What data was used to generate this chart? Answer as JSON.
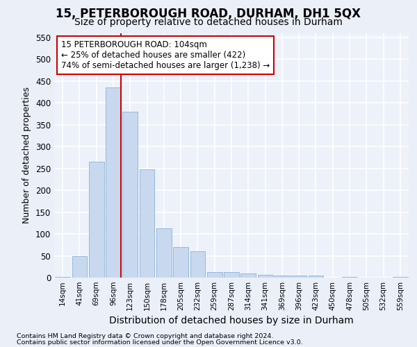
{
  "title": "15, PETERBOROUGH ROAD, DURHAM, DH1 5QX",
  "subtitle": "Size of property relative to detached houses in Durham",
  "xlabel": "Distribution of detached houses by size in Durham",
  "ylabel": "Number of detached properties",
  "bar_labels": [
    "14sqm",
    "41sqm",
    "69sqm",
    "96sqm",
    "123sqm",
    "150sqm",
    "178sqm",
    "205sqm",
    "232sqm",
    "259sqm",
    "287sqm",
    "314sqm",
    "341sqm",
    "369sqm",
    "396sqm",
    "423sqm",
    "450sqm",
    "478sqm",
    "505sqm",
    "532sqm",
    "559sqm"
  ],
  "bar_values": [
    2,
    50,
    265,
    435,
    380,
    248,
    113,
    70,
    60,
    12,
    13,
    9,
    6,
    5,
    5,
    4,
    0,
    1,
    0,
    0,
    2
  ],
  "bar_color": "#c8d8ee",
  "bar_edge_color": "#8ab4d8",
  "vline_x_index": 3,
  "vline_color": "#cc0000",
  "annotation_text": "15 PETERBOROUGH ROAD: 104sqm\n← 25% of detached houses are smaller (422)\n74% of semi-detached houses are larger (1,238) →",
  "annotation_box_color": "#ffffff",
  "annotation_box_edge": "#cc0000",
  "ylim": [
    0,
    560
  ],
  "yticks": [
    0,
    50,
    100,
    150,
    200,
    250,
    300,
    350,
    400,
    450,
    500,
    550
  ],
  "footer1": "Contains HM Land Registry data © Crown copyright and database right 2024.",
  "footer2": "Contains public sector information licensed under the Open Government Licence v3.0.",
  "bg_color": "#eaeff8",
  "plot_bg_color": "#edf1f9",
  "grid_color": "#ffffff",
  "title_fontsize": 12,
  "subtitle_fontsize": 10,
  "ylabel_fontsize": 9,
  "xlabel_fontsize": 10
}
